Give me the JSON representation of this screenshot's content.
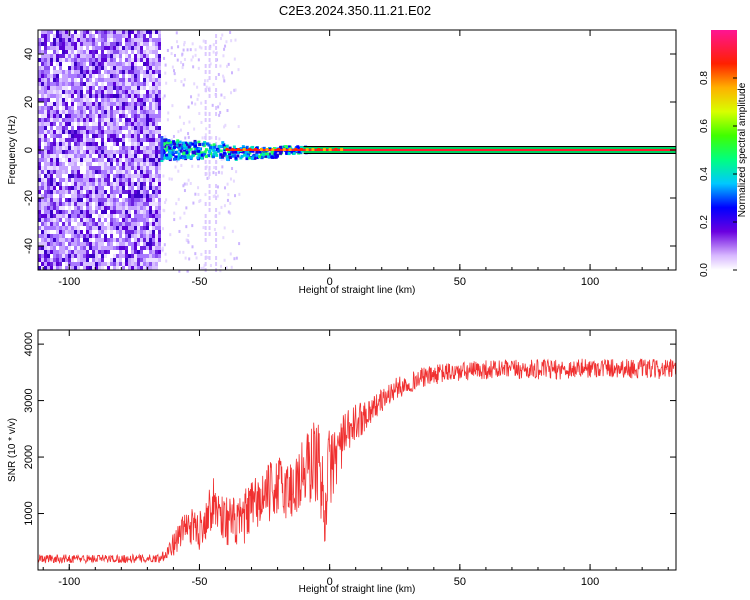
{
  "title": "C2E3.2024.350.11.21.E02",
  "chart_data": [
    {
      "type": "heatmap",
      "xlabel": "Height of straight line (km)",
      "ylabel": "Frequency (Hz)",
      "xlim": [
        -112,
        133
      ],
      "ylim": [
        -50,
        50
      ],
      "xticks": [
        -100,
        -50,
        0,
        50,
        100
      ],
      "yticks": [
        -40,
        -20,
        0,
        20,
        40
      ],
      "noise_region_x": [
        -112,
        -65
      ],
      "signal_onset_x": -65,
      "signal_frequency_hz": 0,
      "colorbar": {
        "label": "Normalized spectral amplitude",
        "range": [
          0,
          1
        ],
        "ticks": [
          0.0,
          0.2,
          0.4,
          0.6,
          0.8
        ]
      }
    },
    {
      "type": "line",
      "xlabel": "Height of straight line (km)",
      "ylabel": "SNR (10 * v/v)",
      "xlim": [
        -112,
        133
      ],
      "ylim": [
        0,
        4250
      ],
      "xticks": [
        -100,
        -50,
        0,
        50,
        100
      ],
      "yticks": [
        1000,
        2000,
        3000,
        4000
      ],
      "series": [
        {
          "color": "#f03030",
          "x": [
            -112,
            -100,
            -90,
            -80,
            -70,
            -65,
            -60,
            -55,
            -50,
            -45,
            -40,
            -35,
            -30,
            -25,
            -20,
            -15,
            -10,
            -5,
            -2,
            0,
            5,
            10,
            15,
            20,
            25,
            30,
            35,
            40,
            45,
            50,
            60,
            70,
            80,
            90,
            100,
            110,
            120,
            133
          ],
          "y": [
            200,
            200,
            200,
            200,
            200,
            210,
            450,
            800,
            700,
            1200,
            900,
            800,
            1100,
            1300,
            1500,
            1400,
            1700,
            2000,
            1200,
            1800,
            2300,
            2600,
            2800,
            3000,
            3200,
            3300,
            3400,
            3450,
            3500,
            3500,
            3550,
            3550,
            3550,
            3550,
            3580,
            3580,
            3560,
            3550
          ],
          "noise_amplitude": [
            150,
            150,
            150,
            150,
            150,
            150,
            400,
            600,
            700,
            900,
            900,
            900,
            1000,
            1000,
            1100,
            1200,
            1400,
            1600,
            1600,
            1500,
            900,
            700,
            500,
            400,
            400,
            350,
            350,
            350,
            350,
            350,
            350,
            350,
            350,
            350,
            350,
            350,
            350,
            350
          ]
        }
      ]
    }
  ]
}
